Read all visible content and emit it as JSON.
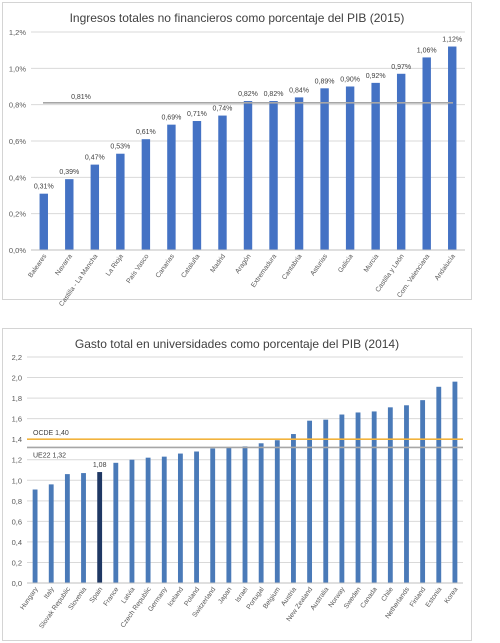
{
  "chart_data": [
    {
      "type": "bar",
      "title": "Ingresos totales no financieros como porcentaje del PIB (2015)",
      "categories": [
        "Baleares",
        "Navarra",
        "Castilla - La Mancha",
        "La Rioja",
        "País Vasco",
        "Canarias",
        "Cataluña",
        "Madrid",
        "Aragón",
        "Extremadura",
        "Cantabria",
        "Asturias",
        "Galicia",
        "Murcia",
        "Castilla y León",
        "Com. Valenciana",
        "Andalucía"
      ],
      "values": [
        0.31,
        0.39,
        0.47,
        0.53,
        0.61,
        0.69,
        0.71,
        0.74,
        0.82,
        0.82,
        0.84,
        0.89,
        0.9,
        0.92,
        0.97,
        1.06,
        1.12
      ],
      "value_labels": [
        "0,31%",
        "0,39%",
        "0,47%",
        "0,53%",
        "0,61%",
        "0,69%",
        "0,71%",
        "0,74%",
        "0,82%",
        "0,82%",
        "0,84%",
        "0,89%",
        "0,90%",
        "0,92%",
        "0,97%",
        "1,06%",
        "1,12%"
      ],
      "ylim": [
        0,
        1.2
      ],
      "yticks": [
        0,
        0.2,
        0.4,
        0.6,
        0.8,
        1.0,
        1.2
      ],
      "ytick_labels": [
        "0,0%",
        "0,2%",
        "0,4%",
        "0,6%",
        "0,8%",
        "1,0%",
        "1,2%"
      ],
      "reference_lines": [
        {
          "value": 0.81,
          "label": "0,81%",
          "color": "#a6a6a6"
        }
      ],
      "bar_color": "#4472c4",
      "grid": true,
      "xlabel": "",
      "ylabel": ""
    },
    {
      "type": "bar",
      "title": "Gasto total en universidades como porcentaje del PIB (2014)",
      "categories": [
        "Hungary",
        "Italy",
        "Slovak Republic",
        "Slovenia",
        "Spain",
        "France",
        "Latvia",
        "Czech Republic",
        "Germany",
        "Iceland",
        "Poland",
        "Switzerland",
        "Japan",
        "Israel",
        "Portugal",
        "Belgium",
        "Austria",
        "New Zealand",
        "Australia",
        "Norway",
        "Sweden",
        "Canada",
        "Chile",
        "Netherlands",
        "Finland",
        "Estonia",
        "Korea"
      ],
      "values": [
        0.91,
        0.96,
        1.06,
        1.07,
        1.08,
        1.17,
        1.2,
        1.22,
        1.23,
        1.26,
        1.28,
        1.31,
        1.32,
        1.33,
        1.36,
        1.39,
        1.45,
        1.58,
        1.59,
        1.64,
        1.66,
        1.67,
        1.71,
        1.73,
        1.78,
        1.91,
        1.96
      ],
      "highlight": {
        "category": "Spain",
        "label": "1,08",
        "color": "#1f3864"
      },
      "ylim": [
        0,
        2.2
      ],
      "yticks": [
        0,
        0.2,
        0.4,
        0.6,
        0.8,
        1.0,
        1.2,
        1.4,
        1.6,
        1.8,
        2.0,
        2.2
      ],
      "ytick_labels": [
        "0,0",
        "0,2",
        "0,4",
        "0,6",
        "0,8",
        "1,0",
        "1,2",
        "1,4",
        "1,6",
        "1,8",
        "2,0",
        "2,2"
      ],
      "reference_lines": [
        {
          "value": 1.4,
          "label": "OCDE 1,40",
          "color": "#f2b33d"
        },
        {
          "value": 1.32,
          "label": "UE22 1,32",
          "color": "#a6a6a6"
        }
      ],
      "bar_color": "#4a7ab8",
      "grid": true,
      "xlabel": "",
      "ylabel": ""
    }
  ]
}
